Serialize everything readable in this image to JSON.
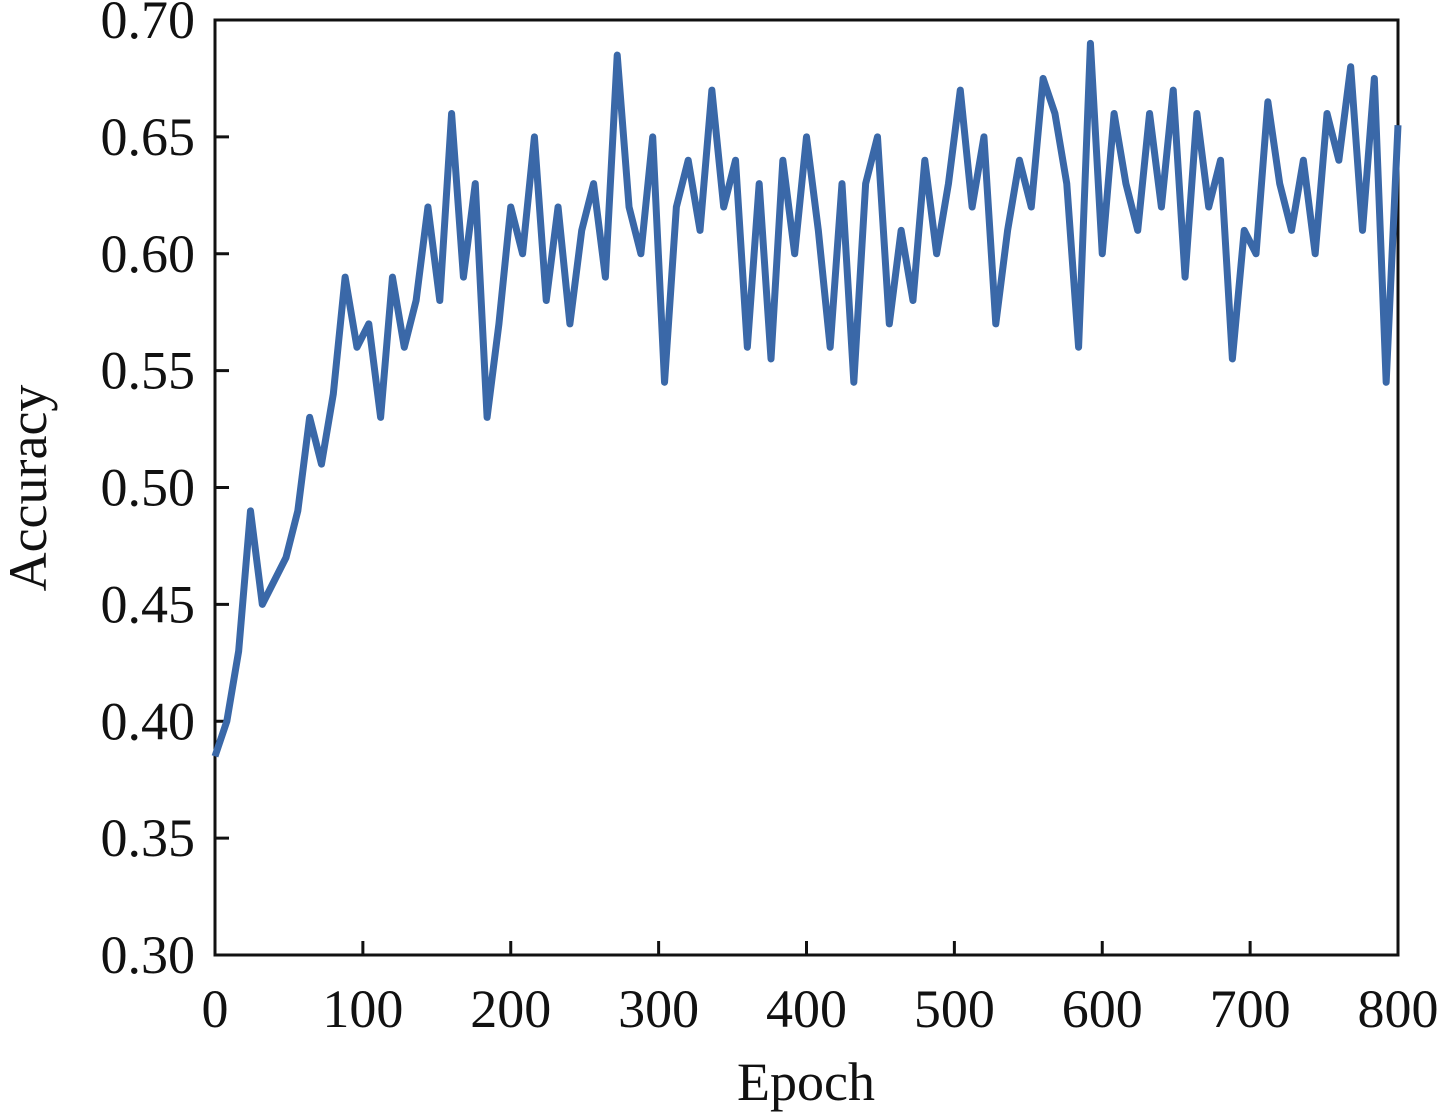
{
  "chart_data": {
    "type": "line",
    "xlabel": "Epoch",
    "ylabel": "Accuracy",
    "x": [
      0,
      8,
      16,
      24,
      32,
      40,
      48,
      56,
      64,
      72,
      80,
      88,
      96,
      104,
      112,
      120,
      128,
      136,
      144,
      152,
      160,
      168,
      176,
      184,
      192,
      200,
      208,
      216,
      224,
      232,
      240,
      248,
      256,
      264,
      272,
      280,
      288,
      296,
      304,
      312,
      320,
      328,
      336,
      344,
      352,
      360,
      368,
      376,
      384,
      392,
      400,
      408,
      416,
      424,
      432,
      440,
      448,
      456,
      464,
      472,
      480,
      488,
      496,
      504,
      512,
      520,
      528,
      536,
      544,
      552,
      560,
      568,
      576,
      584,
      592,
      600,
      608,
      616,
      624,
      632,
      640,
      648,
      656,
      664,
      672,
      680,
      688,
      696,
      704,
      712,
      720,
      728,
      736,
      744,
      752,
      760,
      768,
      776,
      784,
      792,
      800
    ],
    "series": [
      {
        "color": "#3a68a8",
        "values": [
          0.385,
          0.4,
          0.43,
          0.49,
          0.45,
          0.46,
          0.47,
          0.49,
          0.53,
          0.51,
          0.54,
          0.59,
          0.56,
          0.57,
          0.53,
          0.59,
          0.56,
          0.58,
          0.62,
          0.58,
          0.66,
          0.59,
          0.63,
          0.53,
          0.57,
          0.62,
          0.6,
          0.65,
          0.58,
          0.62,
          0.57,
          0.61,
          0.63,
          0.59,
          0.685,
          0.62,
          0.6,
          0.65,
          0.545,
          0.62,
          0.64,
          0.61,
          0.67,
          0.62,
          0.64,
          0.56,
          0.63,
          0.555,
          0.64,
          0.6,
          0.65,
          0.61,
          0.56,
          0.63,
          0.545,
          0.63,
          0.65,
          0.57,
          0.61,
          0.58,
          0.64,
          0.6,
          0.63,
          0.67,
          0.62,
          0.65,
          0.57,
          0.61,
          0.64,
          0.62,
          0.675,
          0.66,
          0.63,
          0.56,
          0.69,
          0.6,
          0.66,
          0.63,
          0.61,
          0.66,
          0.62,
          0.67,
          0.59,
          0.66,
          0.62,
          0.64,
          0.555,
          0.61,
          0.6,
          0.665,
          0.63,
          0.61,
          0.64,
          0.6,
          0.66,
          0.64,
          0.68,
          0.61,
          0.675,
          0.545,
          0.655
        ]
      }
    ],
    "xlim": [
      0,
      800
    ],
    "xticks": [
      0,
      100,
      200,
      300,
      400,
      500,
      600,
      700,
      800
    ],
    "ylim": [
      0.3,
      0.7
    ],
    "yticks": [
      {
        "value": 0.3,
        "label": "0.30"
      },
      0.35,
      {
        "value": 0.4,
        "label": "0.40"
      },
      0.45,
      {
        "value": 0.5,
        "label": "0.50"
      },
      0.55,
      {
        "value": 0.6,
        "label": "0.60"
      },
      0.65,
      {
        "value": 0.7,
        "label": "0.70"
      }
    ]
  }
}
